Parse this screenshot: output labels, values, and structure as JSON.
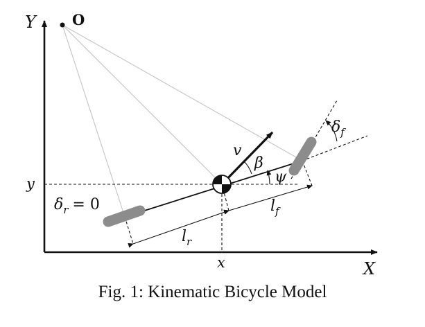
{
  "diagram": {
    "axes": {
      "x_label": "X",
      "y_label": "Y"
    },
    "instant_center_label": "O",
    "coordinate_labels": {
      "x": "x",
      "y": "y"
    },
    "symbols": {
      "velocity": "v",
      "slip_angle": "β",
      "heading": "ψ",
      "steer_front": "δ",
      "steer_front_sub": "f",
      "steer_rear_eq": "δ",
      "steer_rear_sub": "r",
      "steer_rear_value": "= 0",
      "length_rear": "l",
      "length_rear_sub": "r",
      "length_front": "l",
      "length_front_sub": "f"
    },
    "colors": {
      "wheel": "#8c8c8c",
      "line": "#111111",
      "guide": "#c8c8c8"
    }
  },
  "caption": "Fig. 1: Kinematic Bicycle Model"
}
